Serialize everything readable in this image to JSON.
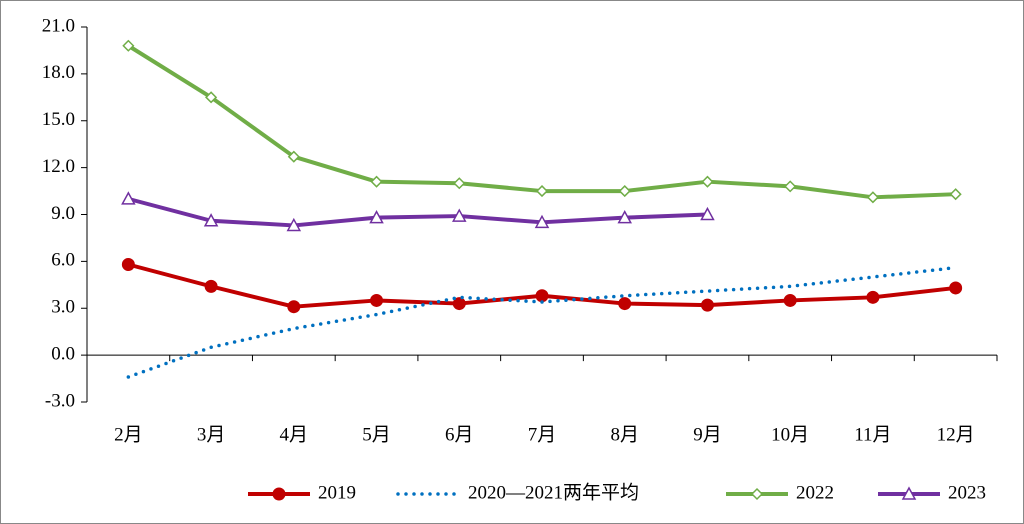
{
  "chart_data": {
    "type": "line",
    "categories": [
      "2月",
      "3月",
      "4月",
      "5月",
      "6月",
      "7月",
      "8月",
      "9月",
      "10月",
      "11月",
      "12月"
    ],
    "series": [
      {
        "name": "2019",
        "color": "#c00000",
        "marker": "circle",
        "style": "solid",
        "values": [
          5.8,
          4.4,
          3.1,
          3.5,
          3.3,
          3.8,
          3.3,
          3.2,
          3.5,
          3.7,
          4.3
        ]
      },
      {
        "name": "2020—2021两年平均",
        "color": "#0070c0",
        "marker": "none",
        "style": "dotted",
        "values": [
          -1.4,
          0.5,
          1.7,
          2.6,
          3.7,
          3.4,
          3.8,
          4.1,
          4.4,
          5.0,
          5.6
        ]
      },
      {
        "name": "2022",
        "color": "#70ad47",
        "marker": "diamond",
        "style": "solid",
        "values": [
          19.8,
          16.5,
          12.7,
          11.1,
          11.0,
          10.5,
          10.5,
          11.1,
          10.8,
          10.1,
          10.3
        ]
      },
      {
        "name": "2023",
        "color": "#7030a0",
        "marker": "triangle",
        "style": "solid",
        "values": [
          10.0,
          8.6,
          8.3,
          8.8,
          8.9,
          8.5,
          8.8,
          9.0,
          null,
          null,
          null
        ]
      }
    ],
    "ylim": [
      -3,
      21
    ],
    "yticks": [
      {
        "value": -3,
        "label": "-3.0"
      },
      {
        "value": 0,
        "label": "0.0"
      },
      {
        "value": 3,
        "label": "3.0"
      },
      {
        "value": 6,
        "label": "6.0"
      },
      {
        "value": 9,
        "label": "9.0"
      },
      {
        "value": 12,
        "label": "12.0"
      },
      {
        "value": 15,
        "label": "15.0"
      },
      {
        "value": 18,
        "label": "18.0"
      },
      {
        "value": 21,
        "label": "21.0"
      }
    ],
    "negative_tick_color": "#ff0000",
    "grid": false,
    "legend": "bottom"
  }
}
